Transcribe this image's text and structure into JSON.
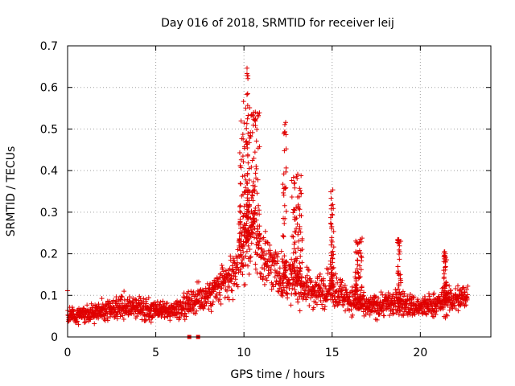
{
  "chart_data": {
    "type": "scatter",
    "title": "Day 016 of 2018, SRMTID for receiver leij",
    "xlabel": "GPS time / hours",
    "ylabel": "SRMTID / TECUs",
    "xlim": [
      0,
      24
    ],
    "ylim": [
      0,
      0.7
    ],
    "x_ticks": [
      0,
      5,
      10,
      15,
      20
    ],
    "y_ticks": [
      0,
      0.1,
      0.2,
      0.3,
      0.4,
      0.5,
      0.6,
      0.7
    ],
    "x_tick_labels": [
      "0",
      "5",
      "10",
      "15",
      "20"
    ],
    "y_tick_labels": [
      "0",
      "0.1",
      "0.2",
      "0.3",
      "0.4",
      "0.5",
      "0.6",
      "0.7"
    ],
    "grid": true,
    "marker": "+",
    "colors": {
      "marker": "#e00000",
      "grid": "#a0a0a0",
      "axis": "#000000"
    },
    "x_range_of_samples": [
      0,
      22.7
    ],
    "baseline_profile": [
      [
        0,
        0.05
      ],
      [
        1,
        0.055
      ],
      [
        2,
        0.06
      ],
      [
        3,
        0.075
      ],
      [
        4,
        0.07
      ],
      [
        5,
        0.06
      ],
      [
        6,
        0.065
      ],
      [
        7,
        0.085
      ],
      [
        8,
        0.1
      ],
      [
        9,
        0.13
      ],
      [
        9.5,
        0.16
      ],
      [
        10,
        0.22
      ],
      [
        10.5,
        0.25
      ],
      [
        11,
        0.2
      ],
      [
        12,
        0.15
      ],
      [
        13,
        0.13
      ],
      [
        14,
        0.11
      ],
      [
        15,
        0.12
      ],
      [
        16,
        0.09
      ],
      [
        17,
        0.07
      ],
      [
        18,
        0.08
      ],
      [
        19,
        0.08
      ],
      [
        20,
        0.07
      ],
      [
        21,
        0.08
      ],
      [
        22,
        0.09
      ],
      [
        22.7,
        0.1
      ]
    ],
    "spike_clusters": [
      {
        "center": 10.0,
        "width": 0.3,
        "max": 0.57
      },
      {
        "center": 10.2,
        "width": 0.05,
        "max": 0.65
      },
      {
        "center": 10.6,
        "width": 0.3,
        "max": 0.57
      },
      {
        "center": 12.3,
        "width": 0.1,
        "max": 0.52
      },
      {
        "center": 13.0,
        "width": 0.3,
        "max": 0.4
      },
      {
        "center": 15.0,
        "width": 0.1,
        "max": 0.38
      },
      {
        "center": 16.5,
        "width": 0.2,
        "max": 0.24
      },
      {
        "center": 18.8,
        "width": 0.1,
        "max": 0.24
      },
      {
        "center": 21.4,
        "width": 0.1,
        "max": 0.21
      }
    ],
    "gap_markers_x": [
      6.9,
      7.4
    ],
    "gap_markers_y": 0
  }
}
